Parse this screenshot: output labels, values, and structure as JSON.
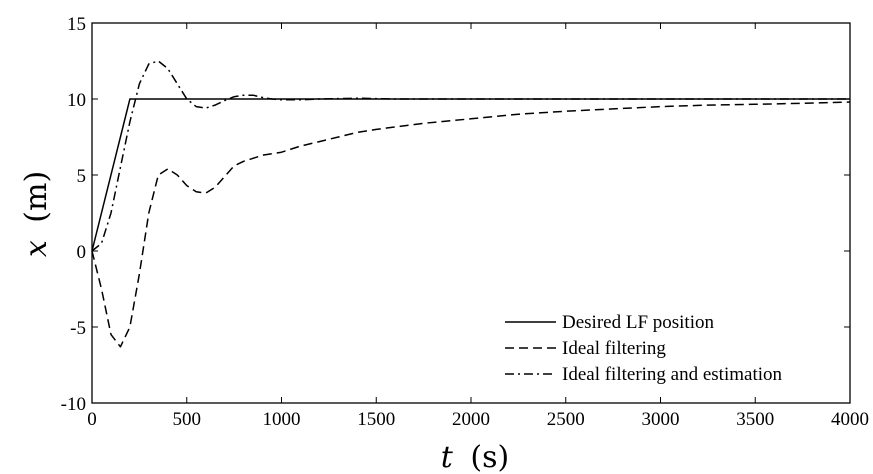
{
  "chart_data": {
    "type": "line",
    "title": "",
    "xlabel_symbol": "t",
    "xlabel_unit": "(s)",
    "ylabel_symbol": "x",
    "ylabel_unit": "(m)",
    "xlim": [
      0,
      4000
    ],
    "ylim": [
      -10,
      15
    ],
    "xticks": [
      0,
      500,
      1000,
      1500,
      2000,
      2500,
      3000,
      3500,
      4000
    ],
    "yticks": [
      -10,
      -5,
      0,
      5,
      10,
      15
    ],
    "xtick_labels": [
      "0",
      "500",
      "1000",
      "1500",
      "2000",
      "2500",
      "3000",
      "3500",
      "4000"
    ],
    "ytick_labels": [
      "-10",
      "-5",
      "0",
      "5",
      "10",
      "15"
    ],
    "grid": false,
    "legend_position": "bottom-right",
    "series": [
      {
        "name": "Desired LF position",
        "style": "solid",
        "x": [
          0,
          200,
          4000
        ],
        "y": [
          0,
          10,
          10
        ]
      },
      {
        "name": "Ideal filtering",
        "style": "dashed",
        "x": [
          0,
          50,
          100,
          150,
          200,
          250,
          300,
          350,
          400,
          450,
          500,
          550,
          600,
          650,
          700,
          750,
          800,
          850,
          900,
          1000,
          1100,
          1200,
          1300,
          1400,
          1500,
          1750,
          2000,
          2250,
          2500,
          2750,
          3000,
          3250,
          3500,
          3750,
          4000
        ],
        "y": [
          0,
          -2.5,
          -5.5,
          -6.3,
          -5.0,
          -1.5,
          2.5,
          5.0,
          5.4,
          5.0,
          4.3,
          3.9,
          3.8,
          4.2,
          4.9,
          5.6,
          5.9,
          6.1,
          6.3,
          6.5,
          6.9,
          7.2,
          7.5,
          7.8,
          8.0,
          8.4,
          8.7,
          9.0,
          9.2,
          9.35,
          9.5,
          9.6,
          9.65,
          9.72,
          9.8
        ]
      },
      {
        "name": "Ideal filtering and estimation",
        "style": "dashdot",
        "x": [
          0,
          50,
          100,
          150,
          200,
          250,
          300,
          350,
          400,
          450,
          500,
          550,
          600,
          650,
          700,
          750,
          800,
          850,
          900,
          950,
          1000,
          1100,
          1200,
          1400,
          1600,
          2000,
          3000,
          4000
        ],
        "y": [
          0,
          0.5,
          2.5,
          5.5,
          8.5,
          11.0,
          12.3,
          12.5,
          12.0,
          11.0,
          10.0,
          9.5,
          9.4,
          9.6,
          9.9,
          10.15,
          10.25,
          10.25,
          10.1,
          10.0,
          9.95,
          9.95,
          10.0,
          10.05,
          10.0,
          10.0,
          10.0,
          10.0
        ]
      }
    ]
  }
}
